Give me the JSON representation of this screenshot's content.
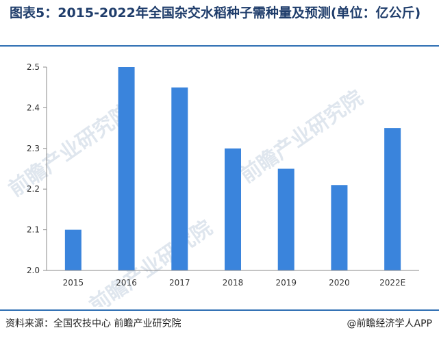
{
  "title": "图表5：2015-2022年全国杂交水稻种子需种量及预测(单位：亿公斤)",
  "source": "资料来源：全国农技中心 前瞻产业研究院",
  "brand": "@前瞻经济学人APP",
  "watermark": "前瞻产业研究院",
  "colors": {
    "bar": "#3a84dc",
    "title": "#1f3d6b",
    "divider": "#2f6fb3"
  },
  "chart_data": {
    "type": "bar",
    "categories": [
      "2015",
      "2016",
      "2017",
      "2018",
      "2019",
      "2020",
      "2022E"
    ],
    "values": [
      2.1,
      2.5,
      2.45,
      2.3,
      2.25,
      2.21,
      2.35
    ],
    "title": "图表5：2015-2022年全国杂交水稻种子需种量及预测(单位：亿公斤)",
    "xlabel": "",
    "ylabel": "",
    "ylim": [
      2.0,
      2.5
    ],
    "yticks": [
      "2.0",
      "2.1",
      "2.2",
      "2.3",
      "2.4",
      "2.5"
    ],
    "grid": false,
    "legend": "none"
  }
}
